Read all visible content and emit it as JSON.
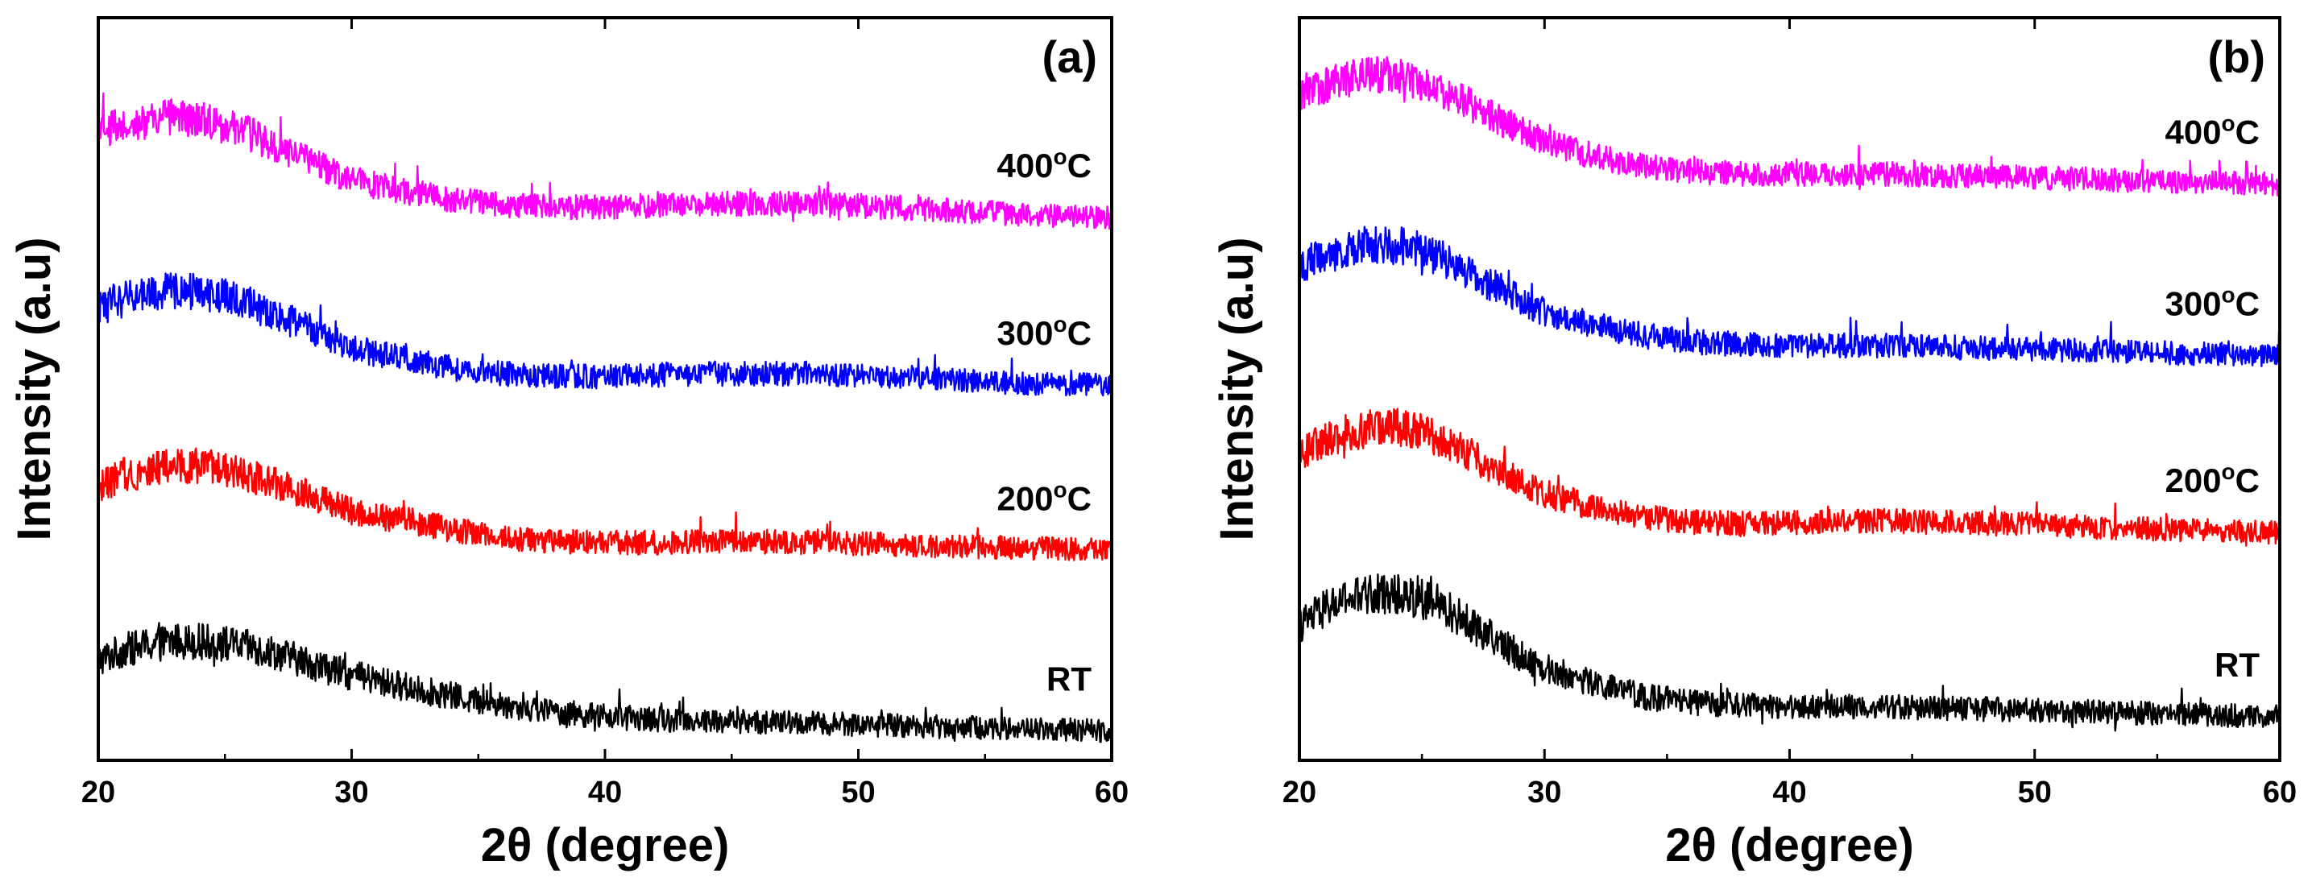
{
  "chart_data": [
    {
      "type": "line",
      "panel_label": "(a)",
      "xlabel": "2θ (degree)",
      "ylabel": "Intensity (a.u)",
      "xlim": [
        20,
        60
      ],
      "xticks": [
        20,
        30,
        40,
        50,
        60
      ],
      "y_tick_labels": false,
      "grid": false,
      "series": [
        {
          "name": "RT",
          "label_parts": [
            "RT",
            "",
            ""
          ],
          "color": "#000000",
          "x": [
            20,
            21,
            22,
            23,
            24,
            25,
            26,
            27,
            28,
            29,
            30,
            32,
            34,
            36,
            38,
            40,
            42,
            44,
            46,
            48,
            50,
            52,
            54,
            56,
            58,
            60
          ],
          "y": [
            0.78,
            0.86,
            0.9,
            0.93,
            0.93,
            0.91,
            0.88,
            0.84,
            0.78,
            0.72,
            0.66,
            0.58,
            0.5,
            0.43,
            0.38,
            0.34,
            0.32,
            0.31,
            0.3,
            0.29,
            0.28,
            0.27,
            0.26,
            0.25,
            0.24,
            0.23
          ]
        },
        {
          "name": "200oC",
          "label_parts": [
            "200",
            "o",
            "C"
          ],
          "color": "#ff0000",
          "x": [
            20,
            21,
            22,
            23,
            24,
            25,
            26,
            27,
            28,
            29,
            30,
            32,
            34,
            36,
            38,
            40,
            42,
            44,
            46,
            48,
            50,
            52,
            54,
            56,
            58,
            60
          ],
          "y": [
            2.14,
            2.22,
            2.27,
            2.3,
            2.3,
            2.27,
            2.22,
            2.16,
            2.1,
            2.02,
            1.94,
            1.88,
            1.8,
            1.74,
            1.71,
            1.7,
            1.7,
            1.71,
            1.71,
            1.7,
            1.69,
            1.68,
            1.67,
            1.66,
            1.65,
            1.64
          ]
        },
        {
          "name": "300oC",
          "label_parts": [
            "300",
            "o",
            "C"
          ],
          "color": "#0000ff",
          "x": [
            20,
            21,
            22,
            23,
            24,
            25,
            26,
            27,
            28,
            29,
            30,
            32,
            34,
            36,
            38,
            40,
            42,
            44,
            46,
            48,
            50,
            52,
            54,
            56,
            58,
            60
          ],
          "y": [
            3.52,
            3.6,
            3.65,
            3.67,
            3.66,
            3.62,
            3.56,
            3.48,
            3.4,
            3.32,
            3.22,
            3.14,
            3.06,
            3.02,
            3.0,
            3.0,
            3.01,
            3.02,
            3.02,
            3.02,
            3.01,
            2.99,
            2.97,
            2.95,
            2.94,
            2.93
          ]
        },
        {
          "name": "400oC",
          "label_parts": [
            "400",
            "o",
            "C"
          ],
          "color": "#ff00ff",
          "x": [
            20,
            21,
            22,
            23,
            24,
            25,
            26,
            27,
            28,
            29,
            30,
            32,
            34,
            36,
            38,
            40,
            42,
            44,
            46,
            48,
            50,
            52,
            54,
            56,
            58,
            60
          ],
          "y": [
            4.9,
            4.96,
            5.0,
            5.02,
            5.0,
            4.96,
            4.89,
            4.8,
            4.7,
            4.62,
            4.53,
            4.45,
            4.38,
            4.34,
            4.32,
            4.32,
            4.33,
            4.34,
            4.35,
            4.34,
            4.33,
            4.31,
            4.29,
            4.27,
            4.25,
            4.24
          ]
        }
      ]
    },
    {
      "type": "line",
      "panel_label": "(b)",
      "xlabel": "2θ (degree)",
      "ylabel": "Intensity (a.u)",
      "xlim": [
        20,
        60
      ],
      "xticks": [
        20,
        30,
        40,
        50,
        60
      ],
      "y_tick_labels": false,
      "grid": false,
      "series": [
        {
          "name": "RT",
          "label_parts": [
            "RT",
            "",
            ""
          ],
          "color": "#000000",
          "x": [
            20,
            21,
            22,
            23,
            24,
            25,
            26,
            27,
            28,
            29,
            30,
            32,
            34,
            36,
            38,
            40,
            42,
            44,
            46,
            48,
            50,
            52,
            54,
            56,
            58,
            60
          ],
          "y": [
            1.05,
            1.18,
            1.26,
            1.3,
            1.3,
            1.26,
            1.18,
            1.06,
            0.94,
            0.82,
            0.72,
            0.6,
            0.5,
            0.45,
            0.43,
            0.42,
            0.42,
            0.42,
            0.41,
            0.4,
            0.39,
            0.38,
            0.37,
            0.36,
            0.35,
            0.34
          ]
        },
        {
          "name": "200oC",
          "label_parts": [
            "200",
            "o",
            "C"
          ],
          "color": "#ff0000",
          "x": [
            20,
            21,
            22,
            23,
            24,
            25,
            26,
            27,
            28,
            29,
            30,
            32,
            34,
            36,
            38,
            40,
            42,
            44,
            46,
            48,
            50,
            52,
            54,
            56,
            58,
            60
          ],
          "y": [
            2.4,
            2.5,
            2.56,
            2.6,
            2.6,
            2.56,
            2.48,
            2.38,
            2.28,
            2.18,
            2.08,
            1.98,
            1.9,
            1.86,
            1.85,
            1.86,
            1.87,
            1.87,
            1.86,
            1.85,
            1.84,
            1.82,
            1.81,
            1.8,
            1.79,
            1.78
          ]
        },
        {
          "name": "300oC",
          "label_parts": [
            "300",
            "o",
            "C"
          ],
          "color": "#0000ff",
          "x": [
            20,
            21,
            22,
            23,
            24,
            25,
            26,
            27,
            28,
            29,
            30,
            32,
            34,
            36,
            38,
            40,
            42,
            44,
            46,
            48,
            50,
            52,
            54,
            56,
            58,
            60
          ],
          "y": [
            3.86,
            3.94,
            4.0,
            4.03,
            4.02,
            3.98,
            3.9,
            3.8,
            3.7,
            3.6,
            3.5,
            3.4,
            3.32,
            3.27,
            3.25,
            3.24,
            3.24,
            3.24,
            3.23,
            3.22,
            3.21,
            3.2,
            3.19,
            3.18,
            3.17,
            3.16
          ]
        },
        {
          "name": "400oC",
          "label_parts": [
            "400",
            "o",
            "C"
          ],
          "color": "#ff00ff",
          "x": [
            20,
            21,
            22,
            23,
            24,
            25,
            26,
            27,
            28,
            29,
            30,
            32,
            34,
            36,
            38,
            40,
            42,
            44,
            46,
            48,
            50,
            52,
            54,
            56,
            58,
            60
          ],
          "y": [
            5.18,
            5.26,
            5.32,
            5.35,
            5.34,
            5.3,
            5.22,
            5.12,
            5.02,
            4.92,
            4.82,
            4.72,
            4.64,
            4.6,
            4.58,
            4.58,
            4.58,
            4.58,
            4.57,
            4.56,
            4.55,
            4.54,
            4.53,
            4.52,
            4.51,
            4.5
          ]
        }
      ]
    }
  ]
}
